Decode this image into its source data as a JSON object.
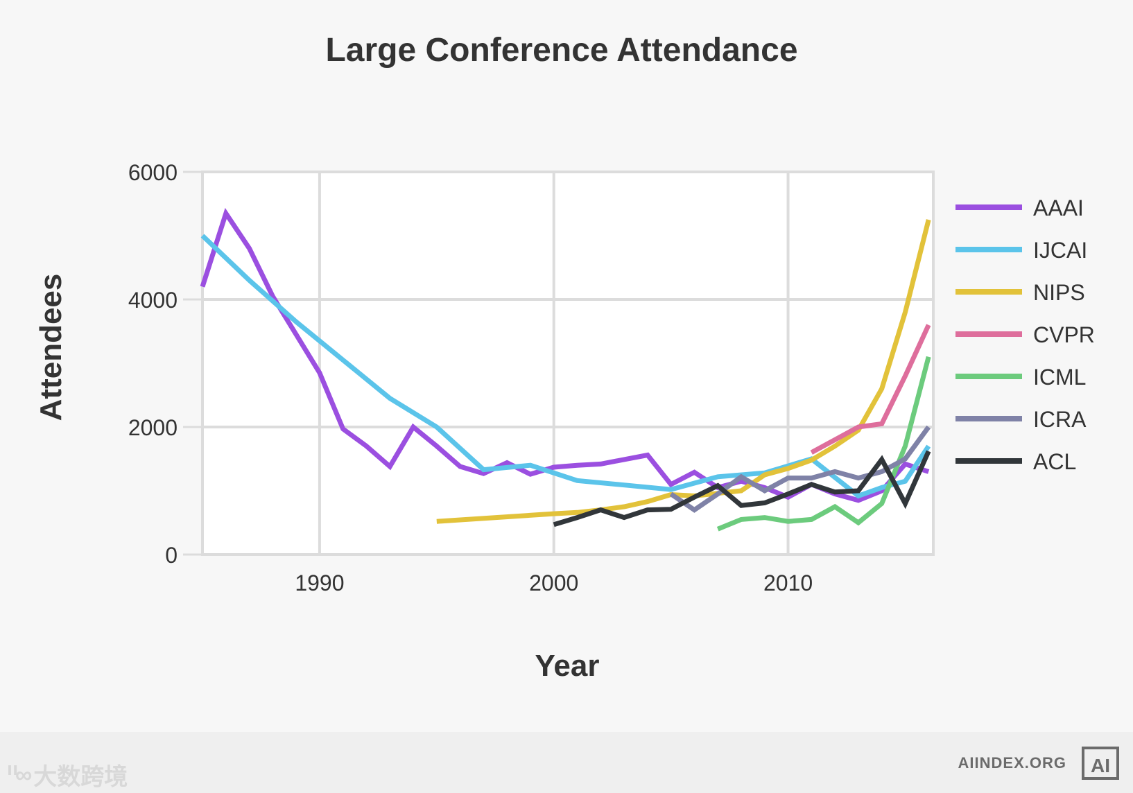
{
  "chart_data": {
    "type": "line",
    "title": "Large Conference Attendance",
    "xlabel": "Year",
    "ylabel": "Attendees",
    "xlim": [
      1985,
      2016.2
    ],
    "ylim": [
      0,
      6000
    ],
    "xticks": [
      1990,
      2000,
      2010
    ],
    "yticks": [
      0,
      2000,
      4000,
      6000
    ],
    "grid": true,
    "legend_position": "right",
    "series": [
      {
        "name": "AAAI",
        "color": "#9b4fe0",
        "x": [
          1985,
          1986,
          1987,
          1988,
          1989,
          1990,
          1991,
          1992,
          1993,
          1994,
          1995,
          1996,
          1997,
          1998,
          1999,
          2000,
          2001,
          2002,
          2003,
          2004,
          2005,
          2006,
          2007,
          2008,
          2009,
          2010,
          2011,
          2012,
          2013,
          2014,
          2015,
          2016
        ],
        "y": [
          4200,
          5350,
          4800,
          4050,
          3450,
          2850,
          1970,
          1700,
          1380,
          2000,
          1700,
          1380,
          1270,
          1440,
          1260,
          1370,
          1400,
          1420,
          1490,
          1560,
          1100,
          1290,
          1050,
          1150,
          1050,
          900,
          1100,
          950,
          850,
          1000,
          1420,
          1300
        ]
      },
      {
        "name": "IJCAI",
        "color": "#5bc4ea",
        "x": [
          1985,
          1987,
          1989,
          1991,
          1993,
          1995,
          1997,
          1999,
          2001,
          2003,
          2005,
          2007,
          2009,
          2011,
          2013,
          2014,
          2015,
          2016
        ],
        "y": [
          5000,
          4300,
          3650,
          3050,
          2450,
          2000,
          1330,
          1400,
          1160,
          1090,
          1020,
          1220,
          1280,
          1500,
          920,
          1050,
          1150,
          1700
        ]
      },
      {
        "name": "NIPS",
        "color": "#e2c23a",
        "x": [
          1995,
          2000,
          2001,
          2002,
          2003,
          2004,
          2005,
          2006,
          2007,
          2008,
          2009,
          2010,
          2011,
          2012,
          2013,
          2014,
          2015,
          2016
        ],
        "y": [
          520,
          640,
          660,
          700,
          750,
          830,
          940,
          920,
          960,
          1000,
          1250,
          1350,
          1480,
          1700,
          1950,
          2600,
          3800,
          5250
        ]
      },
      {
        "name": "CVPR",
        "color": "#de6e9c",
        "x": [
          2011,
          2012,
          2013,
          2014,
          2015,
          2016
        ],
        "y": [
          1600,
          1800,
          2000,
          2050,
          2800,
          3600
        ]
      },
      {
        "name": "ICML",
        "color": "#6ccb7d",
        "x": [
          2007,
          2008,
          2009,
          2010,
          2011,
          2012,
          2013,
          2014,
          2015,
          2016
        ],
        "y": [
          400,
          550,
          580,
          520,
          550,
          750,
          500,
          800,
          1700,
          3100
        ]
      },
      {
        "name": "ICRA",
        "color": "#7f82a7",
        "x": [
          2005,
          2006,
          2007,
          2008,
          2009,
          2010,
          2011,
          2012,
          2013,
          2014,
          2015,
          2016
        ],
        "y": [
          950,
          700,
          950,
          1220,
          1000,
          1200,
          1200,
          1300,
          1200,
          1300,
          1500,
          2000
        ]
      },
      {
        "name": "ACL",
        "color": "#31363a",
        "x": [
          2000,
          2001,
          2002,
          2003,
          2004,
          2005,
          2006,
          2007,
          2008,
          2009,
          2010,
          2011,
          2012,
          2013,
          2014,
          2015,
          2016
        ],
        "y": [
          470,
          580,
          700,
          580,
          700,
          710,
          900,
          1080,
          770,
          810,
          950,
          1100,
          980,
          1000,
          1490,
          800,
          1620
        ]
      }
    ]
  },
  "footer": {
    "watermark": "大数跨境",
    "watermark_logo": "ᐦ∞",
    "brand": "AIINDEX.ORG",
    "brand_logo": "AI"
  }
}
